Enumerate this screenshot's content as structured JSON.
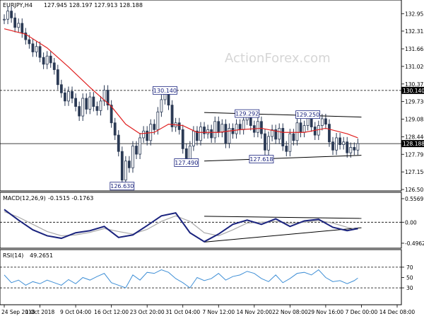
{
  "chart_data": [
    {
      "type": "line",
      "panel": "price",
      "header": {
        "symbol": "EURJPY,H4",
        "ohlc": "127.945 128.197 127.913 128.188"
      },
      "watermark": "ActionForex.com",
      "ylim": [
        126.505,
        133.3
      ],
      "yticks": [
        {
          "label": "132.955",
          "value": 132.955
        },
        {
          "label": "132.315",
          "value": 132.315
        },
        {
          "label": "131.665",
          "value": 131.665
        },
        {
          "label": "131.020",
          "value": 131.02
        },
        {
          "label": "130.375",
          "value": 130.375
        },
        {
          "label": "129.730",
          "value": 129.73
        },
        {
          "label": "129.085",
          "value": 129.085
        },
        {
          "label": "128.440",
          "value": 128.44
        },
        {
          "label": "127.795",
          "value": 127.795
        },
        {
          "label": "127.150",
          "value": 127.15
        },
        {
          "label": "126.505",
          "value": 126.505
        }
      ],
      "reference_levels": [
        {
          "label": "130.140",
          "value": 130.14,
          "style": "dashed"
        },
        {
          "label": "128.188",
          "value": 128.188,
          "style": "solid"
        }
      ],
      "annotations": [
        {
          "label": "130.140",
          "x": 45,
          "y": 130.14
        },
        {
          "label": "129.292",
          "x": 68,
          "y": 129.29
        },
        {
          "label": "129.250",
          "x": 85,
          "y": 129.25
        },
        {
          "label": "127.490",
          "x": 51,
          "y": 127.49
        },
        {
          "label": "127.618",
          "x": 72,
          "y": 127.618
        },
        {
          "label": "126.630",
          "x": 33,
          "y": 126.63
        }
      ],
      "trendlines": [
        {
          "x": [
            56,
            100
          ],
          "y": [
            129.33,
            129.16
          ]
        },
        {
          "x": [
            56,
            100
          ],
          "y": [
            127.55,
            127.76
          ]
        }
      ],
      "price_series": [
        [
          0,
          132.75
        ],
        [
          1,
          133.05
        ],
        [
          2,
          132.8
        ],
        [
          3,
          132.45
        ],
        [
          4,
          132.6
        ],
        [
          5,
          132.25
        ],
        [
          6,
          132.0
        ],
        [
          7,
          131.85
        ],
        [
          8,
          131.55
        ],
        [
          9,
          131.75
        ],
        [
          10,
          131.35
        ],
        [
          11,
          131.1
        ],
        [
          12,
          131.4
        ],
        [
          13,
          131.15
        ],
        [
          14,
          130.9
        ],
        [
          15,
          130.35
        ],
        [
          16,
          130.05
        ],
        [
          17,
          129.75
        ],
        [
          18,
          130.1
        ],
        [
          19,
          129.85
        ],
        [
          20,
          129.55
        ],
        [
          21,
          129.2
        ],
        [
          22,
          129.85
        ],
        [
          23,
          129.45
        ],
        [
          24,
          129.9
        ],
        [
          25,
          129.55
        ],
        [
          26,
          129.4
        ],
        [
          27,
          129.75
        ],
        [
          28,
          130.15
        ],
        [
          29,
          129.6
        ],
        [
          30,
          128.95
        ],
        [
          31,
          128.5
        ],
        [
          32,
          127.9
        ],
        [
          33,
          126.85
        ],
        [
          34,
          127.55
        ],
        [
          35,
          127.3
        ],
        [
          36,
          128.1
        ],
        [
          37,
          127.8
        ],
        [
          38,
          128.4
        ],
        [
          39,
          128.65
        ],
        [
          40,
          128.3
        ],
        [
          41,
          128.9
        ],
        [
          42,
          128.7
        ],
        [
          43,
          129.35
        ],
        [
          44,
          129.8
        ],
        [
          45,
          130.0
        ],
        [
          46,
          129.6
        ],
        [
          47,
          128.8
        ],
        [
          48,
          128.95
        ],
        [
          49,
          128.7
        ],
        [
          50,
          128.0
        ],
        [
          51,
          127.6
        ],
        [
          52,
          128.1
        ],
        [
          53,
          128.65
        ],
        [
          54,
          128.3
        ],
        [
          55,
          128.8
        ],
        [
          56,
          128.55
        ],
        [
          57,
          128.7
        ],
        [
          58,
          128.4
        ],
        [
          59,
          129.0
        ],
        [
          60,
          128.6
        ],
        [
          61,
          128.9
        ],
        [
          62,
          128.2
        ],
        [
          63,
          128.75
        ],
        [
          64,
          128.55
        ],
        [
          65,
          128.9
        ],
        [
          66,
          128.7
        ],
        [
          67,
          129.05
        ],
        [
          68,
          129.2
        ],
        [
          69,
          128.85
        ],
        [
          70,
          128.6
        ],
        [
          71,
          129.0
        ],
        [
          72,
          128.55
        ],
        [
          73,
          127.95
        ],
        [
          74,
          128.45
        ],
        [
          75,
          128.7
        ],
        [
          76,
          128.35
        ],
        [
          77,
          128.75
        ],
        [
          78,
          128.1
        ],
        [
          79,
          127.9
        ],
        [
          80,
          128.55
        ],
        [
          81,
          128.3
        ],
        [
          82,
          128.95
        ],
        [
          83,
          128.6
        ],
        [
          84,
          128.85
        ],
        [
          85,
          129.15
        ],
        [
          86,
          128.8
        ],
        [
          87,
          128.5
        ],
        [
          88,
          128.85
        ],
        [
          89,
          129.1
        ],
        [
          90,
          128.9
        ],
        [
          91,
          128.25
        ],
        [
          92,
          127.95
        ],
        [
          93,
          128.4
        ],
        [
          94,
          128.15
        ],
        [
          95,
          128.25
        ],
        [
          96,
          127.85
        ],
        [
          97,
          128.05
        ],
        [
          98,
          127.95
        ],
        [
          99,
          128.19
        ]
      ],
      "moving_average": [
        [
          0,
          132.4
        ],
        [
          6,
          132.2
        ],
        [
          12,
          131.7
        ],
        [
          18,
          131.0
        ],
        [
          24,
          130.25
        ],
        [
          30,
          129.55
        ],
        [
          34,
          128.9
        ],
        [
          38,
          128.55
        ],
        [
          42,
          128.6
        ],
        [
          46,
          128.9
        ],
        [
          50,
          128.85
        ],
        [
          54,
          128.6
        ],
        [
          60,
          128.6
        ],
        [
          66,
          128.7
        ],
        [
          72,
          128.75
        ],
        [
          78,
          128.6
        ],
        [
          84,
          128.6
        ],
        [
          90,
          128.75
        ],
        [
          96,
          128.55
        ],
        [
          99,
          128.4
        ]
      ]
    },
    {
      "type": "line",
      "panel": "macd",
      "header": {
        "name": "MACD(12,26,9)",
        "values": "-0.1515 -0.1763"
      },
      "ylim": [
        -0.58,
        0.64
      ],
      "yticks": [
        {
          "label": "0.5569",
          "value": 0.5569
        },
        {
          "label": "0.00",
          "value": 0.0
        },
        {
          "label": "-0.4962",
          "value": -0.4962
        }
      ],
      "trendlines": [
        {
          "x": [
            56,
            100
          ],
          "y": [
            0.14,
            0.09
          ]
        },
        {
          "x": [
            56,
            100
          ],
          "y": [
            -0.47,
            -0.13
          ]
        }
      ],
      "series": [
        {
          "values": [
            [
              0,
              0.3
            ],
            [
              4,
              0.05
            ],
            [
              8,
              -0.18
            ],
            [
              12,
              -0.32
            ],
            [
              16,
              -0.38
            ],
            [
              20,
              -0.25
            ],
            [
              24,
              -0.2
            ],
            [
              28,
              -0.1
            ],
            [
              32,
              -0.36
            ],
            [
              36,
              -0.3
            ],
            [
              40,
              -0.08
            ],
            [
              44,
              0.15
            ],
            [
              48,
              0.22
            ],
            [
              52,
              -0.25
            ],
            [
              56,
              -0.46
            ],
            [
              60,
              -0.28
            ],
            [
              64,
              -0.05
            ],
            [
              68,
              0.05
            ],
            [
              72,
              -0.05
            ],
            [
              76,
              0.08
            ],
            [
              80,
              -0.1
            ],
            [
              84,
              0.03
            ],
            [
              88,
              0.07
            ],
            [
              92,
              -0.12
            ],
            [
              96,
              -0.2
            ],
            [
              99,
              -0.15
            ]
          ]
        },
        {
          "values": [
            [
              0,
              0.25
            ],
            [
              4,
              0.12
            ],
            [
              8,
              -0.05
            ],
            [
              12,
              -0.22
            ],
            [
              16,
              -0.32
            ],
            [
              20,
              -0.3
            ],
            [
              24,
              -0.24
            ],
            [
              28,
              -0.15
            ],
            [
              32,
              -0.22
            ],
            [
              36,
              -0.28
            ],
            [
              40,
              -0.17
            ],
            [
              44,
              0.02
            ],
            [
              48,
              0.15
            ],
            [
              52,
              0.02
            ],
            [
              56,
              -0.25
            ],
            [
              60,
              -0.32
            ],
            [
              64,
              -0.18
            ],
            [
              68,
              -0.02
            ],
            [
              72,
              0.0
            ],
            [
              76,
              0.02
            ],
            [
              80,
              -0.03
            ],
            [
              84,
              0.0
            ],
            [
              88,
              0.04
            ],
            [
              92,
              -0.02
            ],
            [
              96,
              -0.12
            ],
            [
              99,
              -0.17
            ]
          ]
        }
      ]
    },
    {
      "type": "line",
      "panel": "rsi",
      "header": {
        "name": "RSI(14)",
        "values": "49.2651"
      },
      "ylim": [
        0,
        100
      ],
      "yticks": [
        {
          "label": "70",
          "value": 70
        },
        {
          "label": "50",
          "value": 50
        },
        {
          "label": "30",
          "value": 30
        }
      ],
      "reference_levels": [
        {
          "label": "70",
          "value": 70
        },
        {
          "label": "30",
          "value": 30
        }
      ],
      "values": [
        [
          0,
          55
        ],
        [
          2,
          40
        ],
        [
          4,
          45
        ],
        [
          6,
          35
        ],
        [
          8,
          42
        ],
        [
          10,
          38
        ],
        [
          12,
          45
        ],
        [
          14,
          40
        ],
        [
          16,
          35
        ],
        [
          18,
          46
        ],
        [
          20,
          38
        ],
        [
          22,
          50
        ],
        [
          24,
          45
        ],
        [
          26,
          52
        ],
        [
          28,
          58
        ],
        [
          30,
          40
        ],
        [
          32,
          35
        ],
        [
          34,
          30
        ],
        [
          36,
          55
        ],
        [
          38,
          45
        ],
        [
          40,
          60
        ],
        [
          42,
          58
        ],
        [
          44,
          65
        ],
        [
          46,
          60
        ],
        [
          48,
          48
        ],
        [
          50,
          40
        ],
        [
          52,
          30
        ],
        [
          54,
          50
        ],
        [
          56,
          44
        ],
        [
          58,
          48
        ],
        [
          60,
          58
        ],
        [
          62,
          45
        ],
        [
          64,
          52
        ],
        [
          66,
          55
        ],
        [
          68,
          62
        ],
        [
          70,
          58
        ],
        [
          72,
          48
        ],
        [
          74,
          42
        ],
        [
          76,
          55
        ],
        [
          78,
          40
        ],
        [
          80,
          48
        ],
        [
          82,
          58
        ],
        [
          84,
          60
        ],
        [
          86,
          55
        ],
        [
          88,
          65
        ],
        [
          90,
          50
        ],
        [
          92,
          42
        ],
        [
          94,
          44
        ],
        [
          96,
          38
        ],
        [
          98,
          44
        ],
        [
          99,
          49
        ]
      ]
    }
  ],
  "x_axis": {
    "ticks": [
      {
        "label": "24 Sep 2018",
        "x": 0
      },
      {
        "label": "1 Oct 2018",
        "x": 10
      },
      {
        "label": "9 Oct 04:00",
        "x": 20
      },
      {
        "label": "16 Oct 12:00",
        "x": 30
      },
      {
        "label": "23 Oct 20:00",
        "x": 40
      },
      {
        "label": "31 Oct 04:00",
        "x": 50
      },
      {
        "label": "7 Nov 12:00",
        "x": 60
      },
      {
        "label": "14 Nov 20:00",
        "x": 70
      },
      {
        "label": "22 Nov 08:00",
        "x": 80
      },
      {
        "label": "29 Nov 16:00",
        "x": 90
      },
      {
        "label": "7 Dec 00:00",
        "x": 100
      },
      {
        "label": "14 Dec 08:00",
        "x": 110
      }
    ]
  },
  "colors": {
    "candle": "#2b3a55",
    "moving_average": "#e02020",
    "macd_line": "#1a237e",
    "macd_signal": "#a8a8a8",
    "rsi_line": "#3f8fd6",
    "trendline": "#000000",
    "label_text": "#1a237e",
    "grid": "#000000"
  }
}
